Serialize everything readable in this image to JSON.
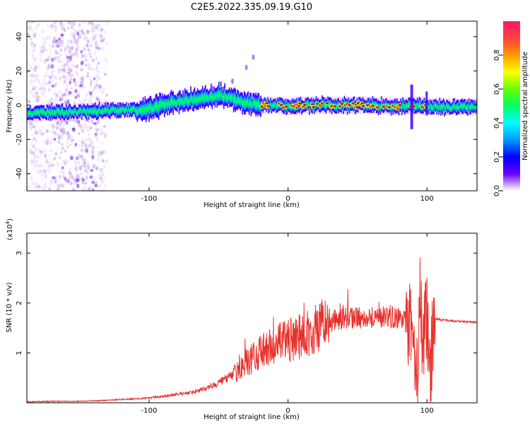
{
  "title": "C2E5.2022.335.09.19.G10",
  "chart_data": [
    {
      "type": "heatmap",
      "name": "spectrogram",
      "xlabel": "Height of straight line (km)",
      "ylabel": "Frequency (Hz)",
      "xlim": [
        -188,
        136
      ],
      "ylim": [
        -50,
        49
      ],
      "x_ticks": [
        -100,
        0,
        100
      ],
      "x_tick_labels": [
        "-100",
        "0",
        "100"
      ],
      "y_ticks": [
        -40,
        -20,
        0,
        20,
        40
      ],
      "y_tick_labels": [
        "-40",
        "-20",
        "0",
        "20",
        "40"
      ],
      "colorbar": {
        "label": "Normalized spectral amplitude",
        "range": [
          0,
          1
        ],
        "ticks": [
          0.0,
          0.2,
          0.4,
          0.6,
          0.8
        ],
        "tick_labels": [
          "0.0",
          "0.2",
          "0.4",
          "0.6",
          "0.8"
        ],
        "colors": [
          "#ff1a66",
          "#ff4040",
          "#ff9900",
          "#ffff00",
          "#66ff00",
          "#00ff66",
          "#00ffff",
          "#0099ff",
          "#0000ff",
          "#6600ff",
          "#ffffff"
        ]
      },
      "ridge": {
        "description_free": true,
        "x": [
          -188,
          -170,
          -150,
          -130,
          -110,
          -100,
          -90,
          -80,
          -70,
          -60,
          -50,
          -40,
          -30,
          -20,
          -10,
          0,
          10,
          20,
          40,
          60,
          80,
          90,
          100,
          110,
          136
        ],
        "y": [
          -5,
          -4,
          -4,
          -3,
          -3,
          -2,
          0,
          2,
          3,
          4,
          6,
          4,
          1,
          0,
          0,
          -1,
          0,
          0,
          0,
          0,
          -1,
          0,
          -1,
          -1,
          -1
        ]
      },
      "colors": {
        "ridge_hot": "#e01010",
        "ridge_warm": "#ffff00",
        "ridge_mid": "#00ff66",
        "ridge_cool": "#00aaff",
        "ridge_cold": "#4400ff",
        "haze": "#d9b8f2"
      }
    },
    {
      "type": "line",
      "name": "snr",
      "xlabel": "Height of straight line (km)",
      "ylabel": "SNR (10 * v/v)",
      "exponent_label": "(x10",
      "exponent_power": "4",
      "exponent_close": ")",
      "xlim": [
        -188,
        136
      ],
      "ylim": [
        0,
        3.4
      ],
      "x_ticks": [
        -100,
        0,
        100
      ],
      "x_tick_labels": [
        "-100",
        "0",
        "100"
      ],
      "y_ticks": [
        1,
        2,
        3
      ],
      "y_tick_labels": [
        "1",
        "2",
        "3"
      ],
      "color": "#e8302b",
      "x": [
        -188,
        -170,
        -150,
        -130,
        -120,
        -110,
        -100,
        -90,
        -80,
        -70,
        -60,
        -50,
        -40,
        -30,
        -20,
        -10,
        0,
        10,
        20,
        30,
        40,
        50,
        60,
        70,
        80,
        85,
        90,
        93,
        95,
        97,
        100,
        102,
        105,
        110,
        120,
        136
      ],
      "y": [
        0.02,
        0.03,
        0.03,
        0.05,
        0.07,
        0.08,
        0.1,
        0.13,
        0.17,
        0.21,
        0.28,
        0.4,
        0.55,
        0.8,
        1.0,
        1.15,
        1.25,
        1.35,
        1.48,
        1.62,
        1.7,
        1.7,
        1.72,
        1.72,
        1.7,
        1.6,
        1.4,
        0.4,
        2.1,
        1.2,
        1.8,
        0.5,
        1.7,
        1.66,
        1.64,
        1.61
      ]
    }
  ]
}
